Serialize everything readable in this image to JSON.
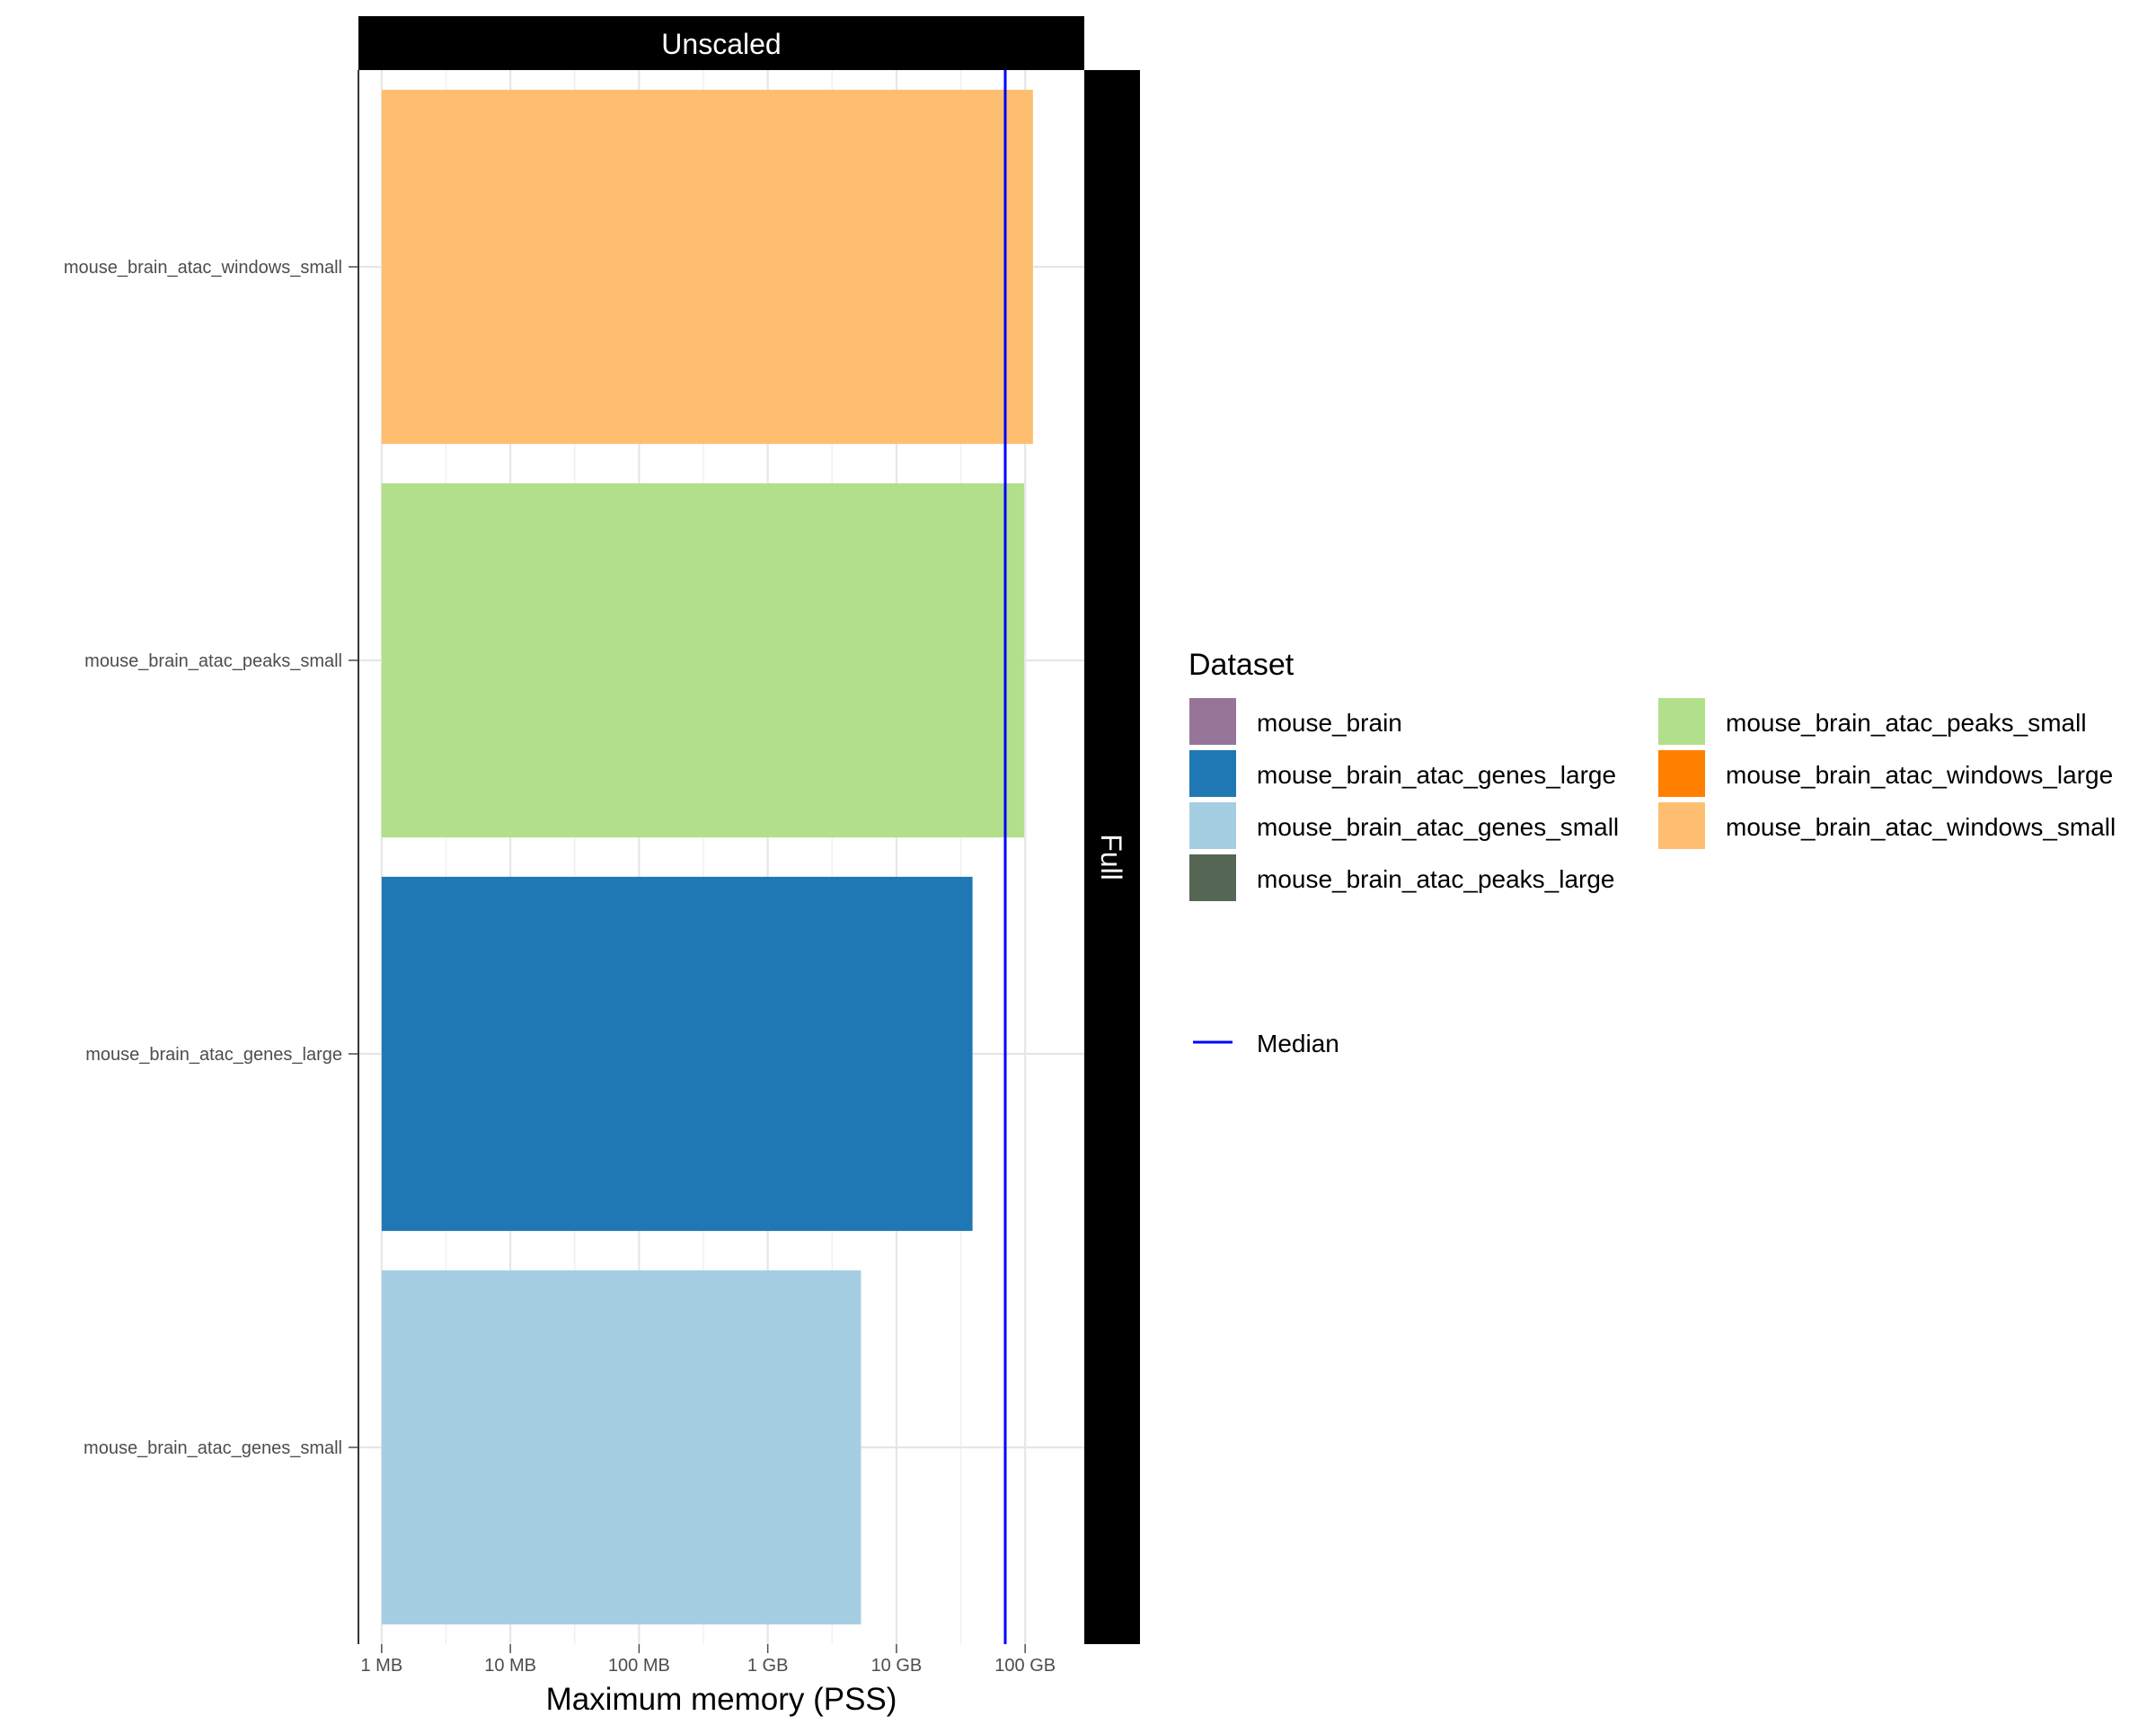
{
  "chart_data": {
    "type": "bar",
    "orientation": "horizontal",
    "x_scale": "log10",
    "facet_top": "Unscaled",
    "facet_right": "Full",
    "xlabel": "Maximum memory (PSS)",
    "ylabel": "",
    "xlim_bytes": [
      660000,
      288000000000
    ],
    "x_ticks": [
      {
        "value": 1000000,
        "label": "1 MB"
      },
      {
        "value": 10000000,
        "label": "10 MB"
      },
      {
        "value": 100000000,
        "label": "100 MB"
      },
      {
        "value": 1000000000,
        "label": "1 GB"
      },
      {
        "value": 10000000000,
        "label": "10 GB"
      },
      {
        "value": 100000000000,
        "label": "100 GB"
      }
    ],
    "categories": [
      "mouse_brain_atac_windows_small",
      "mouse_brain_atac_peaks_small",
      "mouse_brain_atac_genes_large",
      "mouse_brain_atac_genes_small"
    ],
    "values_bytes": [
      115000000000,
      98000000000,
      39000000000,
      5300000000
    ],
    "bar_colors": [
      "#FDBF6F",
      "#B2DF8A",
      "#1F78B4",
      "#A6CEE3"
    ],
    "median_bytes": 70000000000,
    "median_color": "#0000FF",
    "legend": {
      "title": "Dataset",
      "position": "right",
      "entries": [
        {
          "label": "mouse_brain",
          "color": "#967599"
        },
        {
          "label": "mouse_brain_atac_genes_large",
          "color": "#1F78B4"
        },
        {
          "label": "mouse_brain_atac_genes_small",
          "color": "#A6CEE3"
        },
        {
          "label": "mouse_brain_atac_peaks_large",
          "color": "#556655"
        },
        {
          "label": "mouse_brain_atac_peaks_small",
          "color": "#B2DF8A"
        },
        {
          "label": "mouse_brain_atac_windows_large",
          "color": "#FF7F00"
        },
        {
          "label": "mouse_brain_atac_windows_small",
          "color": "#FDBF6F"
        }
      ],
      "line_entry": {
        "label": "Median",
        "color": "#0000FF"
      }
    }
  }
}
